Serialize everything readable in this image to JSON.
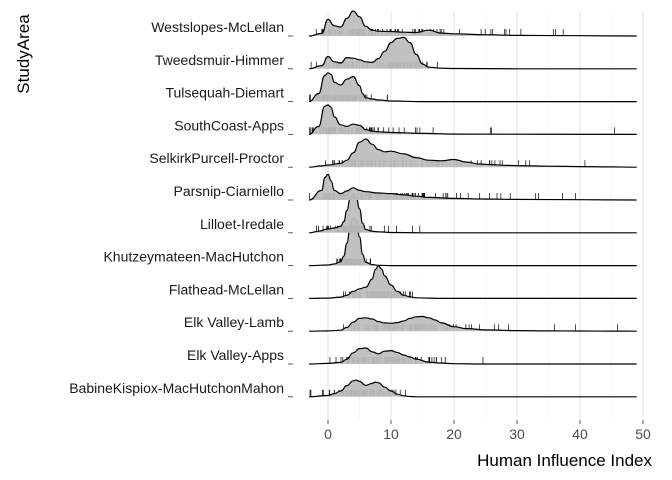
{
  "chart_data": {
    "type": "ridgeline",
    "xlabel": "Human Influence Index",
    "ylabel": "StudyArea",
    "xlim": [
      -3,
      50
    ],
    "xticks": [
      0,
      10,
      20,
      30,
      40,
      50
    ],
    "grid": true,
    "legend": "none",
    "colors": {
      "fill": "#bebebe",
      "line": "#000000",
      "grid": "#e5e5e5",
      "rug": "#000000"
    },
    "categories": [
      "Westslopes-McLellan",
      "Tweedsmuir-Himmer",
      "Tulsequah-Diemart",
      "SouthCoast-Apps",
      "SelkirkPurcell-Proctor",
      "Parsnip-Ciarniello",
      "Lilloet-Iredale",
      "Khutzeymateen-MacHutchon",
      "Flathead-McLellan",
      "Elk Valley-Lamb",
      "Elk Valley-Apps",
      "BabineKispiox-MacHutchonMahon"
    ],
    "series": [
      {
        "name": "Westslopes-McLellan",
        "x": [
          -3,
          -1,
          0,
          1,
          2,
          3,
          4,
          5,
          6,
          7,
          8,
          10,
          12,
          14,
          16,
          18,
          20,
          25,
          30,
          40,
          49
        ],
        "density": [
          0,
          0.08,
          0.52,
          0.32,
          0.28,
          0.55,
          0.78,
          0.6,
          0.3,
          0.18,
          0.15,
          0.14,
          0.12,
          0.11,
          0.18,
          0.09,
          0.07,
          0.04,
          0.02,
          0.01,
          0
        ]
      },
      {
        "name": "Tweedsmuir-Himmer",
        "x": [
          -3,
          -1,
          0,
          1,
          2,
          3,
          4,
          5,
          6,
          7,
          8,
          9,
          10,
          11,
          12,
          13,
          14,
          15,
          16,
          18,
          20,
          30,
          49
        ],
        "density": [
          0,
          0.1,
          0.38,
          0.22,
          0.18,
          0.35,
          0.33,
          0.28,
          0.22,
          0.2,
          0.32,
          0.55,
          0.82,
          0.95,
          0.98,
          0.82,
          0.45,
          0.15,
          0.05,
          0.02,
          0.01,
          0,
          0
        ]
      },
      {
        "name": "Tulsequah-Diemart",
        "x": [
          -3,
          -1.5,
          -0.5,
          0,
          0.5,
          1,
          2,
          3,
          4,
          5,
          5.5,
          6,
          7,
          8,
          10,
          15,
          49
        ],
        "density": [
          0,
          0.25,
          0.82,
          0.9,
          0.85,
          0.6,
          0.52,
          0.7,
          0.78,
          0.5,
          0.25,
          0.12,
          0.08,
          0.05,
          0.02,
          0,
          0
        ]
      },
      {
        "name": "SouthCoast-Apps",
        "x": [
          -3,
          -1.5,
          -0.5,
          0,
          0.5,
          1,
          2,
          3,
          4,
          5,
          6,
          7,
          8,
          10,
          12,
          15,
          20,
          49
        ],
        "density": [
          0,
          0.25,
          0.88,
          0.92,
          0.85,
          0.55,
          0.3,
          0.25,
          0.32,
          0.28,
          0.15,
          0.1,
          0.08,
          0.06,
          0.05,
          0.03,
          0.01,
          0
        ]
      },
      {
        "name": "SelkirkPurcell-Proctor",
        "x": [
          -3,
          -1,
          0,
          2,
          3,
          4,
          5,
          6,
          7,
          8,
          9,
          10,
          12,
          14,
          16,
          18,
          20,
          22,
          24,
          26,
          28,
          30,
          35,
          40,
          45,
          49
        ],
        "density": [
          0,
          0.04,
          0.07,
          0.12,
          0.22,
          0.45,
          0.78,
          0.88,
          0.72,
          0.55,
          0.48,
          0.5,
          0.42,
          0.3,
          0.22,
          0.2,
          0.24,
          0.16,
          0.1,
          0.08,
          0.06,
          0.05,
          0.03,
          0.02,
          0.01,
          0
        ]
      },
      {
        "name": "Parsnip-Ciarniello",
        "x": [
          -3,
          -1,
          -0.5,
          0,
          0.5,
          1,
          2,
          3,
          4,
          5,
          6,
          8,
          10,
          12,
          14,
          16,
          20,
          25,
          30,
          40,
          49
        ],
        "density": [
          0,
          0.3,
          0.7,
          0.8,
          0.6,
          0.3,
          0.2,
          0.28,
          0.38,
          0.3,
          0.26,
          0.22,
          0.2,
          0.16,
          0.12,
          0.08,
          0.05,
          0.03,
          0.02,
          0.01,
          0
        ]
      },
      {
        "name": "Lilloet-Iredale",
        "x": [
          -3,
          -1.5,
          0,
          1,
          2,
          2.5,
          3,
          3.5,
          4,
          4.5,
          5,
          5.5,
          6,
          7,
          8,
          10,
          15,
          49
        ],
        "density": [
          0,
          0.05,
          0.12,
          0.15,
          0.2,
          0.35,
          0.7,
          1.05,
          1.22,
          1.1,
          0.75,
          0.3,
          0.1,
          0.05,
          0.03,
          0.01,
          0,
          0
        ]
      },
      {
        "name": "Khutzeymateen-MacHutchon",
        "x": [
          -3,
          0,
          1,
          2,
          2.5,
          3,
          3.5,
          4,
          4.5,
          5,
          5.5,
          6,
          7,
          8,
          10,
          15,
          49
        ],
        "density": [
          0,
          0.02,
          0.05,
          0.12,
          0.3,
          0.7,
          1.2,
          1.5,
          1.4,
          0.9,
          0.35,
          0.1,
          0.03,
          0.01,
          0,
          0,
          0
        ]
      },
      {
        "name": "Flathead-McLellan",
        "x": [
          -3,
          0,
          2,
          3,
          4,
          5,
          6,
          7,
          7.5,
          8,
          8.5,
          9,
          10,
          11,
          12,
          13,
          14,
          16,
          18,
          20,
          49
        ],
        "density": [
          0,
          0.01,
          0.04,
          0.1,
          0.22,
          0.3,
          0.35,
          0.6,
          0.9,
          1.02,
          0.92,
          0.7,
          0.42,
          0.22,
          0.1,
          0.05,
          0.02,
          0.01,
          0,
          0,
          0
        ]
      },
      {
        "name": "Elk Valley-Lamb",
        "x": [
          -3,
          0,
          2,
          3,
          4,
          5,
          6,
          7,
          8,
          9,
          10,
          11,
          12,
          13,
          14,
          15,
          16,
          17,
          18,
          20,
          22,
          25,
          30,
          35,
          40,
          45,
          49
        ],
        "density": [
          0,
          0.01,
          0.03,
          0.12,
          0.28,
          0.4,
          0.42,
          0.38,
          0.3,
          0.26,
          0.25,
          0.27,
          0.32,
          0.4,
          0.45,
          0.46,
          0.42,
          0.35,
          0.26,
          0.14,
          0.08,
          0.04,
          0.02,
          0.01,
          0.005,
          0.002,
          0
        ]
      },
      {
        "name": "Elk Valley-Apps",
        "x": [
          -3,
          0,
          2,
          3,
          4,
          5,
          6,
          7,
          8,
          9,
          10,
          11,
          12,
          13,
          14,
          16,
          18,
          20,
          25,
          49
        ],
        "density": [
          0,
          0.02,
          0.05,
          0.15,
          0.35,
          0.48,
          0.5,
          0.38,
          0.32,
          0.4,
          0.42,
          0.36,
          0.28,
          0.22,
          0.15,
          0.06,
          0.03,
          0.01,
          0,
          0
        ]
      },
      {
        "name": "BabineKispiox-MacHutchonMahon",
        "x": [
          -3,
          0,
          1,
          2,
          3,
          4,
          4.5,
          5,
          6,
          7,
          7.5,
          8,
          9,
          10,
          11,
          12,
          13,
          14,
          16,
          20,
          49
        ],
        "density": [
          0,
          0.04,
          0.1,
          0.18,
          0.35,
          0.5,
          0.52,
          0.48,
          0.36,
          0.42,
          0.46,
          0.44,
          0.3,
          0.18,
          0.08,
          0.03,
          0.01,
          0,
          0,
          0,
          0
        ]
      }
    ]
  }
}
